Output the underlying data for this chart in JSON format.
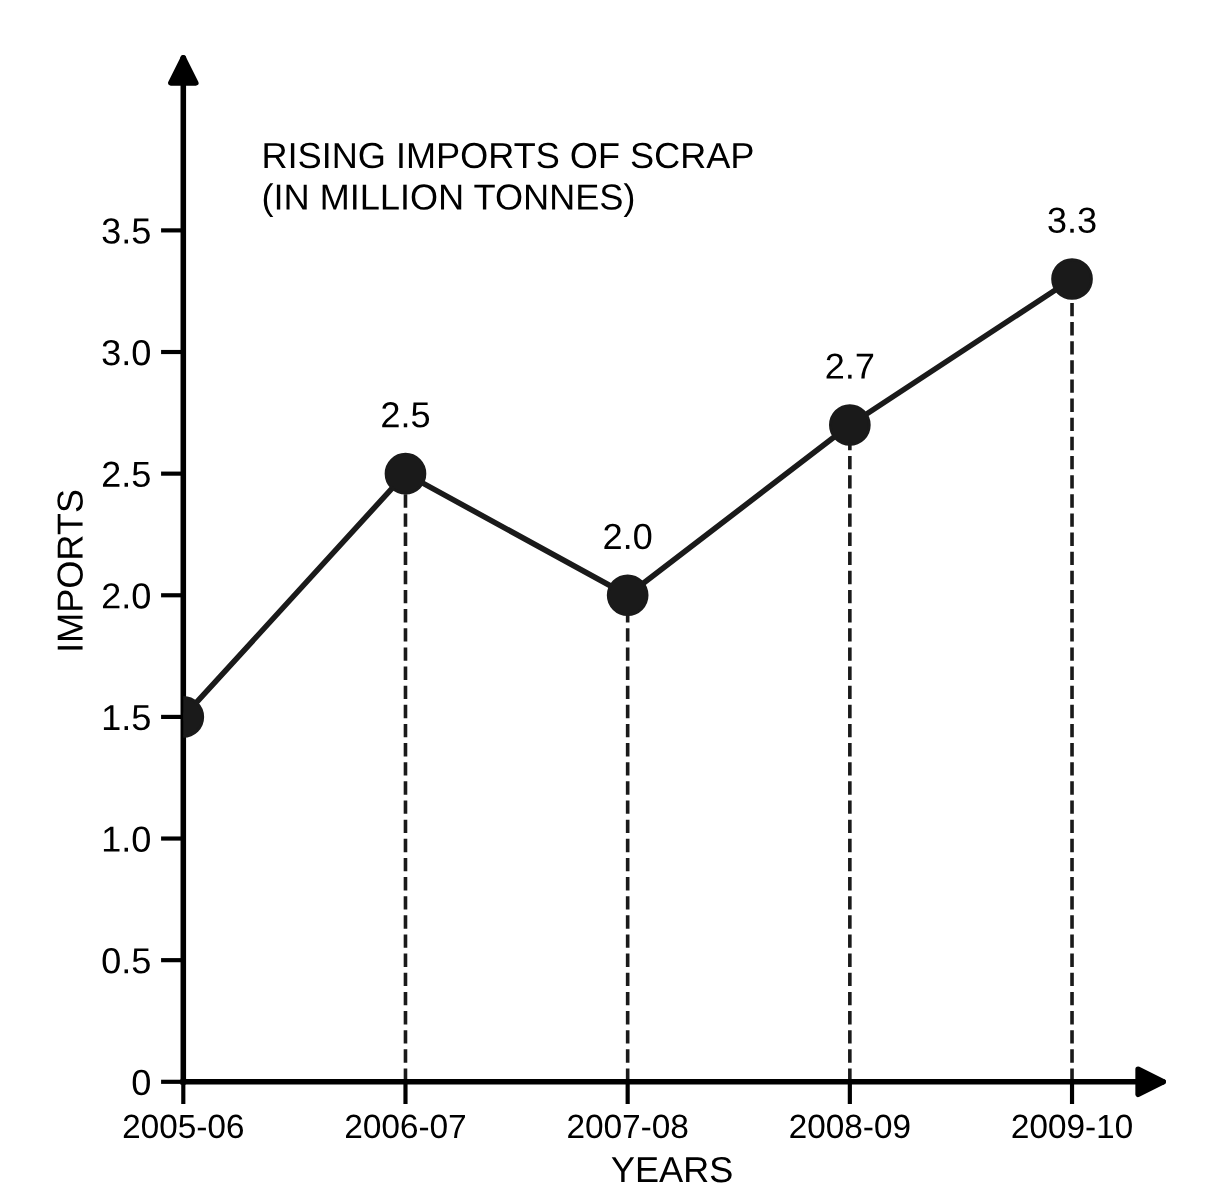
{
  "chart_data": {
    "type": "line",
    "title": "RISING IMPORTS OF SCRAP\n(IN MILLION TONNES)",
    "xlabel": "YEARS",
    "ylabel": "IMPORTS",
    "categories": [
      "2005-06",
      "2006-07",
      "2007-08",
      "2008-09",
      "2009-10"
    ],
    "series": [
      {
        "color": "#1a1a1a",
        "values": [
          1.5,
          2.5,
          2.0,
          2.7,
          3.3
        ],
        "value_labels": [
          null,
          "2.5",
          "2.0",
          "2.7",
          "3.3"
        ]
      }
    ],
    "ylim": [
      0,
      4.2
    ],
    "yticks": [
      0,
      0.5,
      {
        "value": 1,
        "label": "1.0"
      },
      1.5,
      {
        "value": 2,
        "label": "2.0"
      },
      2.5,
      {
        "value": 3,
        "label": "3.0"
      },
      3.5
    ],
    "marker": "circle",
    "line_style": "solid",
    "legend": false
  }
}
